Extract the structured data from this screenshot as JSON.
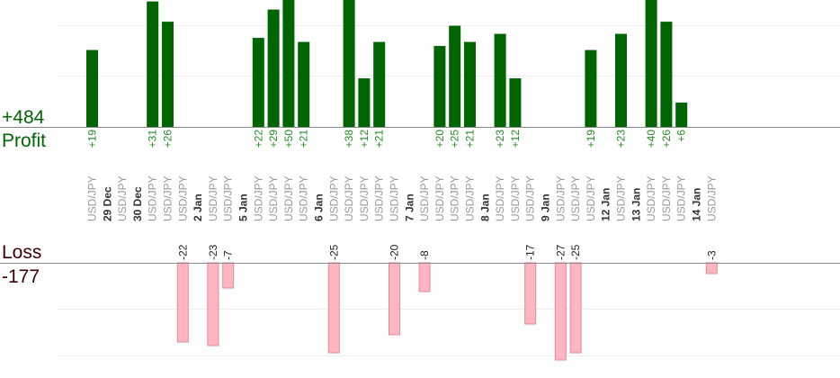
{
  "summary": {
    "profit_total": "+484",
    "profit_label": "Profit",
    "loss_label": "Loss",
    "loss_total": "-177"
  },
  "colors": {
    "profit": "#006400",
    "profit_text": "#228B22",
    "loss": "#FFB6C1",
    "loss_stroke": "#E08A98",
    "loss_text": "#222222",
    "loss_total_text": "#3B0000",
    "date_text": "#333333",
    "pair_text": "#999999",
    "grid": "#EEEEEE",
    "axis": "#888888"
  },
  "chart_data": {
    "type": "bar",
    "title": "",
    "date_groups": [
      "29 Dec",
      "30 Dec",
      "2 Jan",
      "5 Jan",
      "6 Jan",
      "7 Jan",
      "8 Jan",
      "9 Jan",
      "12 Jan",
      "13 Jan",
      "14 Jan"
    ],
    "trades": [
      {
        "date": "",
        "pair": "USD/JPY",
        "profit": 19
      },
      {
        "date": "29 Dec",
        "pair": "",
        "profit": null
      },
      {
        "date": "",
        "pair": "USD/JPY",
        "profit": null
      },
      {
        "date": "30 Dec",
        "pair": "",
        "profit": null
      },
      {
        "date": "",
        "pair": "USD/JPY",
        "profit": 31
      },
      {
        "date": "",
        "pair": "USD/JPY",
        "profit": 26
      },
      {
        "date": "",
        "pair": "USD/JPY",
        "loss": -22
      },
      {
        "date": "2 Jan",
        "pair": "",
        "profit": null
      },
      {
        "date": "",
        "pair": "USD/JPY",
        "loss": -23
      },
      {
        "date": "",
        "pair": "USD/JPY",
        "loss": -7
      },
      {
        "date": "5 Jan",
        "pair": "",
        "profit": null
      },
      {
        "date": "",
        "pair": "USD/JPY",
        "profit": 22
      },
      {
        "date": "",
        "pair": "USD/JPY",
        "profit": 29
      },
      {
        "date": "",
        "pair": "USD/JPY",
        "profit": 50
      },
      {
        "date": "",
        "pair": "USD/JPY",
        "profit": 21
      },
      {
        "date": "6 Jan",
        "pair": "",
        "profit": null
      },
      {
        "date": "",
        "pair": "USD/JPY",
        "loss": -25
      },
      {
        "date": "",
        "pair": "USD/JPY",
        "profit": 38
      },
      {
        "date": "",
        "pair": "USD/JPY",
        "profit": 12
      },
      {
        "date": "",
        "pair": "USD/JPY",
        "profit": 21
      },
      {
        "date": "",
        "pair": "USD/JPY",
        "loss": -20
      },
      {
        "date": "7 Jan",
        "pair": "",
        "profit": null
      },
      {
        "date": "",
        "pair": "USD/JPY",
        "loss": -8
      },
      {
        "date": "",
        "pair": "USD/JPY",
        "profit": 20
      },
      {
        "date": "",
        "pair": "USD/JPY",
        "profit": 25
      },
      {
        "date": "",
        "pair": "USD/JPY",
        "profit": 21
      },
      {
        "date": "8 Jan",
        "pair": "",
        "profit": null
      },
      {
        "date": "",
        "pair": "USD/JPY",
        "profit": 23
      },
      {
        "date": "",
        "pair": "USD/JPY",
        "profit": 12
      },
      {
        "date": "",
        "pair": "USD/JPY",
        "loss": -17
      },
      {
        "date": "9 Jan",
        "pair": "",
        "profit": null
      },
      {
        "date": "",
        "pair": "USD/JPY",
        "loss": -27
      },
      {
        "date": "",
        "pair": "USD/JPY",
        "loss": -25
      },
      {
        "date": "",
        "pair": "USD/JPY",
        "profit": 19
      },
      {
        "date": "12 Jan",
        "pair": "",
        "profit": null
      },
      {
        "date": "",
        "pair": "USD/JPY",
        "profit": 23
      },
      {
        "date": "13 Jan",
        "pair": "",
        "profit": null
      },
      {
        "date": "",
        "pair": "USD/JPY",
        "profit": 40
      },
      {
        "date": "",
        "pair": "USD/JPY",
        "profit": 26
      },
      {
        "date": "",
        "pair": "USD/JPY",
        "profit": 6
      },
      {
        "date": "14 Jan",
        "pair": "",
        "profit": null
      },
      {
        "date": "",
        "pair": "USD/JPY",
        "loss": -3
      }
    ],
    "profit_axis": {
      "ylim": [
        0,
        25
      ]
    },
    "loss_axis": {
      "ylim": [
        -22.5,
        0
      ]
    },
    "grid": true
  }
}
